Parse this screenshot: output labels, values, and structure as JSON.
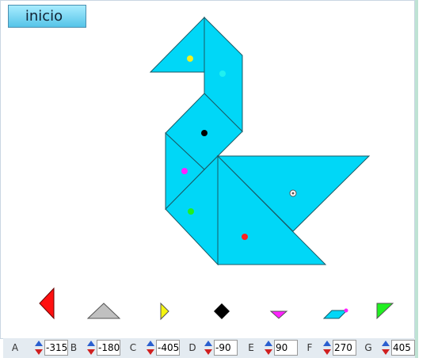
{
  "toolbar": {
    "inicio_label": "inicio"
  },
  "colors": {
    "piece_fill": "#00d7f7",
    "piece_stroke": "#1a5a66"
  },
  "controls": [
    {
      "label": "A",
      "value": "-315"
    },
    {
      "label": "B",
      "value": "-180"
    },
    {
      "label": "C",
      "value": "-405"
    },
    {
      "label": "D",
      "value": "-90"
    },
    {
      "label": "E",
      "value": "90"
    },
    {
      "label": "F",
      "value": "270"
    },
    {
      "label": "G",
      "value": "405"
    }
  ]
}
